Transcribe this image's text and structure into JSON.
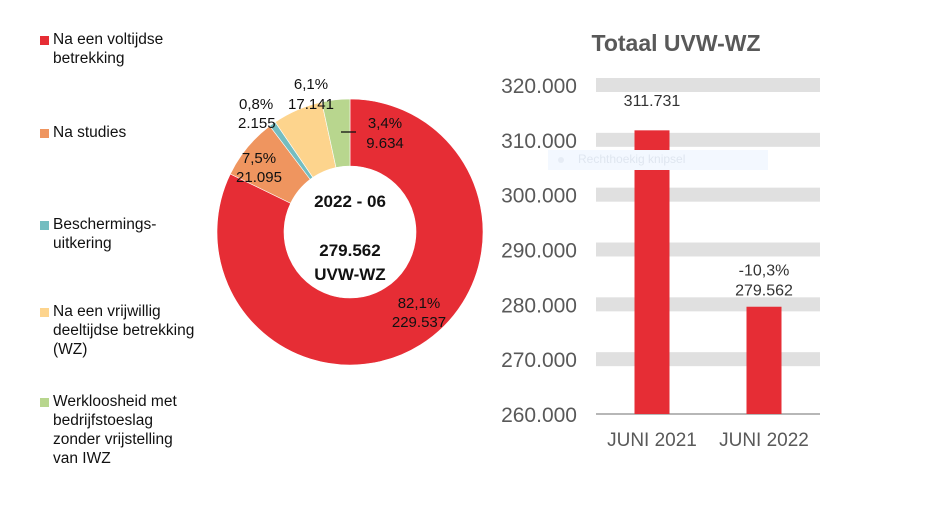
{
  "chart_data": [
    {
      "type": "pie",
      "variant": "donut",
      "center_title": "2022 - 06",
      "center_value": "279.562",
      "center_unit": "UVW-WZ",
      "slices": [
        {
          "name": "Na een voltijdse betrekking",
          "legend_lines": [
            "Na een voltijdse",
            "betrekking"
          ],
          "percent": 82.1,
          "percent_label": "82,1%",
          "value": 229537,
          "value_label": "229.537",
          "color": "#e62d35"
        },
        {
          "name": "Na studies",
          "legend_lines": [
            "Na studies"
          ],
          "percent": 7.5,
          "percent_label": "7,5%",
          "value": 21095,
          "value_label": "21.095",
          "color": "#ef955f"
        },
        {
          "name": "Beschermings-uitkering",
          "legend_lines": [
            "Beschermings-",
            "uitkering"
          ],
          "percent": 0.8,
          "percent_label": "0,8%",
          "value": 2155,
          "value_label": "2.155",
          "color": "#74bdc0"
        },
        {
          "name": "Na een vrijwillig deeltijdse betrekking (WZ)",
          "legend_lines": [
            "Na een vrijwillig",
            "deeltijdse betrekking",
            "(WZ)"
          ],
          "percent": 6.1,
          "percent_label": "6,1%",
          "value": 17141,
          "value_label": "17.141",
          "color": "#fdd48d"
        },
        {
          "name": "Werkloosheid met bedrijfstoeslag zonder vrijstelling van IWZ",
          "legend_lines": [
            "Werkloosheid met",
            "bedrijfstoeslag",
            "zonder vrijstelling",
            "van IWZ"
          ],
          "percent": 3.4,
          "percent_label": "3,4%",
          "value": 9634,
          "value_label": "9.634",
          "color": "#b8d68e"
        }
      ],
      "legend_position": "left"
    },
    {
      "type": "bar",
      "title": "Totaal UVW-WZ",
      "categories": [
        "JUNI 2021",
        "JUNI 2022"
      ],
      "values": [
        311731,
        279562
      ],
      "value_labels": [
        "311.731",
        "279.562"
      ],
      "annotations": [
        "",
        "-10,3%"
      ],
      "ylim": [
        260000,
        320000
      ],
      "yticks": [
        260000,
        270000,
        280000,
        290000,
        300000,
        310000,
        320000
      ],
      "ytick_labels": [
        "260.000",
        "270.000",
        "280.000",
        "290.000",
        "300.000",
        "310.000",
        "320.000"
      ],
      "grid": true,
      "bar_color": "#e62d35",
      "grid_color": "#e0e0e0",
      "xlabel": "",
      "ylabel": ""
    }
  ],
  "overlay": {
    "text": "Rechthoekig knipsel"
  }
}
